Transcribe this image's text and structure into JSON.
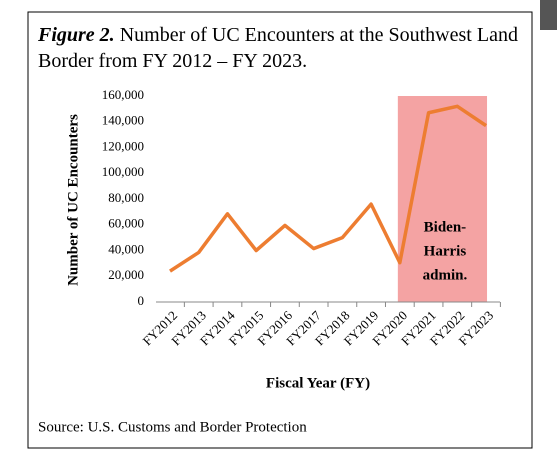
{
  "chart_data": {
    "type": "line",
    "title_label": "Figure 2.",
    "title": "Number of UC Encounters at the Southwest Land Border from FY 2012 – FY 2023.",
    "x_label": "Fiscal Year (FY)",
    "y_label": "Number of UC Encounters",
    "source": "Source: U.S. Customs and Border Protection",
    "categories": [
      "FY2012",
      "FY2013",
      "FY2014",
      "FY2015",
      "FY2016",
      "FY2017",
      "FY2018",
      "FY2019",
      "FY2020",
      "FY2021",
      "FY2022",
      "FY2023"
    ],
    "values": [
      24000,
      38500,
      68500,
      40000,
      59500,
      41500,
      50000,
      76000,
      30500,
      147000,
      152000,
      137000
    ],
    "color": "#ed7d31",
    "ylim": [
      0,
      160000
    ],
    "yticks": [
      0,
      {
        "value": 20000,
        "label": "20,000"
      },
      {
        "value": 40000,
        "label": "40,000"
      },
      {
        "value": 60000,
        "label": "60,000"
      },
      {
        "value": 80000,
        "label": "80,000"
      },
      {
        "value": 100000,
        "label": "100,000"
      },
      {
        "value": 120000,
        "label": "120,000"
      },
      {
        "value": 140000,
        "label": "140,000"
      },
      {
        "value": 160000,
        "label": "160,000"
      }
    ],
    "grid": false,
    "shaded_span": [
      "FY2020",
      "FY2023"
    ],
    "shade_color": "#f4a3a3",
    "annotation": [
      "Biden-",
      "Harris",
      "admin."
    ]
  }
}
